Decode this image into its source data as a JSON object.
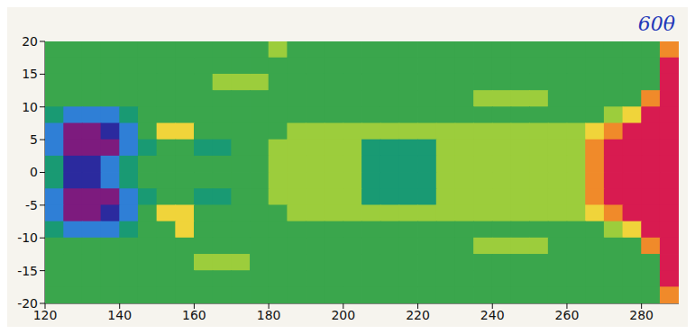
{
  "chart_data": {
    "type": "heatmap",
    "annotation": "60θ",
    "xlim": [
      120,
      290
    ],
    "xticks": [
      120,
      140,
      160,
      180,
      200,
      220,
      240,
      260,
      280
    ],
    "ylim": [
      -20,
      20
    ],
    "yticks": [
      -20,
      -15,
      -10,
      -5,
      0,
      5,
      10,
      15,
      20
    ],
    "zlim": [
      -4,
      4
    ],
    "colors": [
      "#7d1b7e",
      "#2b2a9e",
      "#2f7fd6",
      "#199a73",
      "#3aa64c",
      "#9ccd3c",
      "#f0d43a",
      "#f08a2a",
      "#d81b50"
    ],
    "cells": {
      "x": [
        122.5,
        127.5,
        132.5,
        137.5,
        142.5,
        147.5,
        152.5,
        157.5,
        162.5,
        167.5,
        172.5,
        177.5,
        182.5,
        187.5,
        192.5,
        197.5,
        202.5,
        207.5,
        212.5,
        217.5,
        222.5,
        227.5,
        232.5,
        237.5,
        242.5,
        247.5,
        252.5,
        257.5,
        262.5,
        267.5,
        272.5,
        277.5,
        282.5,
        287.5
      ],
      "y": [
        18.75,
        16.25,
        13.75,
        11.25,
        8.75,
        6.25,
        3.75,
        1.25,
        -1.25,
        -3.75,
        -6.25,
        -8.75,
        -11.25,
        -13.75,
        -16.25,
        -18.75
      ],
      "z": [
        [
          0,
          0,
          0,
          0,
          0,
          0,
          0,
          0,
          0,
          0,
          0,
          0,
          1,
          0,
          0,
          0,
          0,
          0,
          0,
          0,
          0,
          0,
          0,
          0,
          0,
          0,
          0,
          0,
          0,
          0,
          0,
          0,
          0,
          3
        ],
        [
          0,
          0,
          0,
          0,
          0,
          0,
          0,
          0,
          0,
          0,
          0,
          0,
          0,
          0,
          0,
          0,
          0,
          0,
          0,
          0,
          0,
          0,
          0,
          0,
          0,
          0,
          0,
          0,
          0,
          0,
          0,
          0,
          0,
          4
        ],
        [
          0,
          0,
          0,
          0,
          0,
          0,
          0,
          0,
          0,
          1,
          1,
          1,
          0,
          0,
          0,
          0,
          0,
          0,
          0,
          0,
          0,
          0,
          0,
          0,
          0,
          0,
          0,
          0,
          0,
          0,
          0,
          0,
          0,
          4
        ],
        [
          0,
          0,
          0,
          0,
          0,
          0,
          0,
          0,
          0,
          0,
          0,
          0,
          0,
          0,
          0,
          0,
          0,
          0,
          0,
          0,
          0,
          0,
          0,
          1,
          1,
          1,
          1,
          0,
          0,
          0,
          0,
          0,
          3,
          4
        ],
        [
          -1,
          -2,
          -2,
          -2,
          -1,
          0,
          0,
          0,
          0,
          0,
          0,
          0,
          0,
          0,
          0,
          0,
          0,
          0,
          0,
          0,
          0,
          0,
          0,
          0,
          0,
          0,
          0,
          0,
          0,
          0,
          1,
          2,
          4,
          4
        ],
        [
          -2,
          -4,
          -4,
          -3,
          -2,
          0,
          2,
          2,
          0,
          0,
          0,
          0,
          0,
          1,
          1,
          1,
          1,
          1,
          1,
          1,
          1,
          1,
          1,
          1,
          1,
          1,
          1,
          1,
          1,
          2,
          3,
          4,
          4,
          4
        ],
        [
          -2,
          -4,
          -4,
          -4,
          -2,
          -1,
          0,
          0,
          -1,
          -1,
          0,
          0,
          1,
          1,
          1,
          1,
          1,
          -1,
          -1,
          -1,
          -1,
          1,
          1,
          1,
          1,
          1,
          1,
          1,
          1,
          3,
          4,
          4,
          4,
          4
        ],
        [
          -1,
          -3,
          -3,
          -2,
          -1,
          0,
          0,
          0,
          0,
          0,
          0,
          0,
          1,
          1,
          1,
          1,
          1,
          -1,
          -1,
          -1,
          -1,
          1,
          1,
          1,
          1,
          1,
          1,
          1,
          1,
          3,
          4,
          4,
          4,
          4
        ],
        [
          -1,
          -3,
          -3,
          -2,
          -1,
          0,
          0,
          0,
          0,
          0,
          0,
          0,
          1,
          1,
          1,
          1,
          1,
          -1,
          -1,
          -1,
          -1,
          1,
          1,
          1,
          1,
          1,
          1,
          1,
          1,
          3,
          4,
          4,
          4,
          4
        ],
        [
          -2,
          -4,
          -4,
          -4,
          -2,
          -1,
          0,
          0,
          -1,
          -1,
          0,
          0,
          1,
          1,
          1,
          1,
          1,
          -1,
          -1,
          -1,
          -1,
          1,
          1,
          1,
          1,
          1,
          1,
          1,
          1,
          3,
          4,
          4,
          4,
          4
        ],
        [
          -2,
          -4,
          -4,
          -3,
          -2,
          0,
          2,
          2,
          0,
          0,
          0,
          0,
          0,
          1,
          1,
          1,
          1,
          1,
          1,
          1,
          1,
          1,
          1,
          1,
          1,
          1,
          1,
          1,
          1,
          2,
          3,
          4,
          4,
          4
        ],
        [
          -1,
          -2,
          -2,
          -2,
          -1,
          0,
          0,
          2,
          0,
          0,
          0,
          0,
          0,
          0,
          0,
          0,
          0,
          0,
          0,
          0,
          0,
          0,
          0,
          0,
          0,
          0,
          0,
          0,
          0,
          0,
          1,
          2,
          4,
          4
        ],
        [
          0,
          0,
          0,
          0,
          0,
          0,
          0,
          0,
          0,
          0,
          0,
          0,
          0,
          0,
          0,
          0,
          0,
          0,
          0,
          0,
          0,
          0,
          0,
          1,
          1,
          1,
          1,
          0,
          0,
          0,
          0,
          0,
          3,
          4
        ],
        [
          0,
          0,
          0,
          0,
          0,
          0,
          0,
          0,
          1,
          1,
          1,
          0,
          0,
          0,
          0,
          0,
          0,
          0,
          0,
          0,
          0,
          0,
          0,
          0,
          0,
          0,
          0,
          0,
          0,
          0,
          0,
          0,
          0,
          4
        ],
        [
          0,
          0,
          0,
          0,
          0,
          0,
          0,
          0,
          0,
          0,
          0,
          0,
          0,
          0,
          0,
          0,
          0,
          0,
          0,
          0,
          0,
          0,
          0,
          0,
          0,
          0,
          0,
          0,
          0,
          0,
          0,
          0,
          0,
          4
        ],
        [
          0,
          0,
          0,
          0,
          0,
          0,
          0,
          0,
          0,
          0,
          0,
          0,
          0,
          0,
          0,
          0,
          0,
          0,
          0,
          0,
          0,
          0,
          0,
          0,
          0,
          0,
          0,
          0,
          0,
          0,
          0,
          0,
          0,
          3
        ]
      ]
    }
  }
}
